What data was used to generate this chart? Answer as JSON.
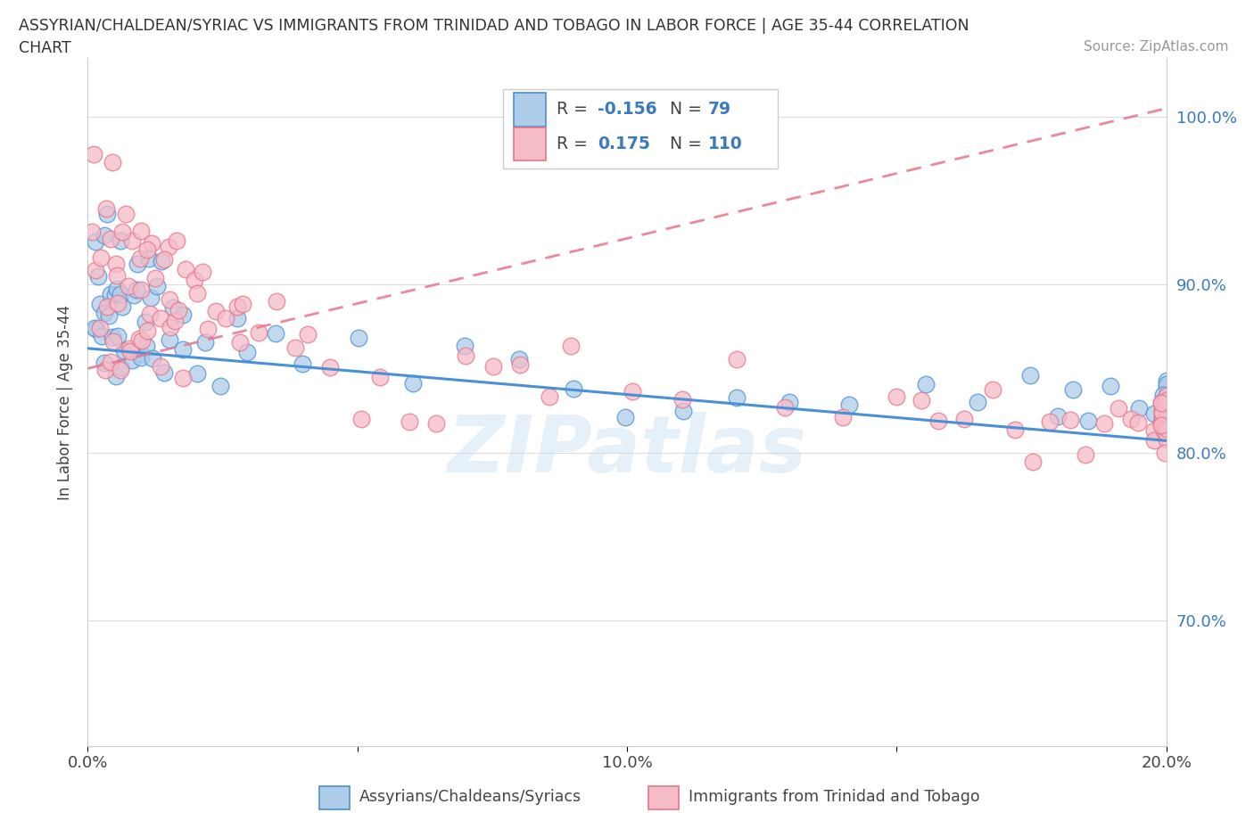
{
  "title_line1": "ASSYRIAN/CHALDEAN/SYRIAC VS IMMIGRANTS FROM TRINIDAD AND TOBAGO IN LABOR FORCE | AGE 35-44 CORRELATION",
  "title_line2": "CHART",
  "source_text": "Source: ZipAtlas.com",
  "ylabel": "In Labor Force | Age 35-44",
  "xmin": 0.0,
  "xmax": 0.2,
  "ymin": 0.625,
  "ymax": 1.035,
  "yticks": [
    0.7,
    0.8,
    0.9,
    1.0
  ],
  "ytick_labels": [
    "70.0%",
    "80.0%",
    "90.0%",
    "100.0%"
  ],
  "xticks": [
    0.0,
    0.05,
    0.1,
    0.15,
    0.2
  ],
  "xtick_labels": [
    "0.0%",
    "",
    "10.0%",
    "",
    "20.0%"
  ],
  "series1_color": "#4a90d9",
  "series1_color_fill": "#aecde8",
  "series2_color": "#e8748a",
  "series2_color_fill": "#f5bcc8",
  "series1_label": "Assyrians/Chaldeans/Syriacs",
  "series2_label": "Immigrants from Trinidad and Tobago",
  "series1_R": -0.156,
  "series1_N": 79,
  "series2_R": 0.175,
  "series2_N": 110,
  "legend_text_color": "#3a7abf",
  "label_text_color": "#444444",
  "watermark_color": "#c8dff0",
  "background_color": "#ffffff",
  "grid_color": "#dddddd",
  "series1_x": [
    0.001,
    0.001,
    0.002,
    0.002,
    0.002,
    0.003,
    0.003,
    0.003,
    0.003,
    0.004,
    0.004,
    0.004,
    0.004,
    0.005,
    0.005,
    0.005,
    0.006,
    0.006,
    0.006,
    0.007,
    0.007,
    0.007,
    0.008,
    0.008,
    0.008,
    0.009,
    0.009,
    0.01,
    0.01,
    0.011,
    0.011,
    0.012,
    0.012,
    0.013,
    0.013,
    0.014,
    0.015,
    0.016,
    0.017,
    0.018,
    0.02,
    0.022,
    0.025,
    0.028,
    0.03,
    0.035,
    0.04,
    0.05,
    0.06,
    0.07,
    0.08,
    0.09,
    0.1,
    0.11,
    0.12,
    0.13,
    0.14,
    0.155,
    0.165,
    0.175,
    0.18,
    0.183,
    0.185,
    0.19,
    0.195,
    0.198,
    0.2,
    0.2,
    0.2,
    0.2,
    0.2,
    0.2,
    0.2,
    0.2,
    0.2,
    0.2,
    0.2,
    0.2,
    0.2
  ],
  "series1_y": [
    0.88,
    0.91,
    0.86,
    0.92,
    0.89,
    0.87,
    0.9,
    0.93,
    0.85,
    0.88,
    0.91,
    0.86,
    0.94,
    0.87,
    0.9,
    0.84,
    0.89,
    0.93,
    0.86,
    0.88,
    0.91,
    0.85,
    0.87,
    0.92,
    0.89,
    0.86,
    0.9,
    0.88,
    0.85,
    0.91,
    0.87,
    0.89,
    0.86,
    0.88,
    0.92,
    0.85,
    0.87,
    0.89,
    0.86,
    0.88,
    0.86,
    0.87,
    0.85,
    0.87,
    0.84,
    0.86,
    0.85,
    0.86,
    0.84,
    0.85,
    0.85,
    0.84,
    0.83,
    0.83,
    0.83,
    0.84,
    0.83,
    0.83,
    0.83,
    0.83,
    0.81,
    0.84,
    0.83,
    0.84,
    0.83,
    0.82,
    0.83,
    0.83,
    0.83,
    0.83,
    0.83,
    0.83,
    0.83,
    0.83,
    0.83,
    0.83,
    0.83,
    0.83,
    0.83
  ],
  "series2_x": [
    0.001,
    0.001,
    0.002,
    0.002,
    0.003,
    0.003,
    0.003,
    0.004,
    0.004,
    0.004,
    0.005,
    0.005,
    0.005,
    0.006,
    0.006,
    0.006,
    0.007,
    0.007,
    0.007,
    0.008,
    0.008,
    0.008,
    0.009,
    0.009,
    0.01,
    0.01,
    0.01,
    0.011,
    0.011,
    0.012,
    0.012,
    0.013,
    0.013,
    0.014,
    0.014,
    0.015,
    0.015,
    0.016,
    0.016,
    0.017,
    0.017,
    0.018,
    0.018,
    0.019,
    0.02,
    0.021,
    0.022,
    0.023,
    0.025,
    0.027,
    0.028,
    0.03,
    0.032,
    0.035,
    0.038,
    0.04,
    0.045,
    0.05,
    0.055,
    0.06,
    0.065,
    0.07,
    0.075,
    0.08,
    0.085,
    0.09,
    0.1,
    0.11,
    0.12,
    0.13,
    0.14,
    0.15,
    0.155,
    0.158,
    0.163,
    0.168,
    0.172,
    0.175,
    0.178,
    0.182,
    0.185,
    0.188,
    0.191,
    0.193,
    0.195,
    0.197,
    0.198,
    0.199,
    0.2,
    0.2,
    0.2,
    0.2,
    0.2,
    0.2,
    0.2,
    0.2,
    0.2,
    0.2,
    0.2,
    0.2,
    0.2,
    0.2,
    0.2,
    0.2,
    0.2,
    0.2,
    0.2,
    0.2,
    0.2,
    0.2
  ],
  "series2_y": [
    0.9,
    0.97,
    0.88,
    0.92,
    0.91,
    0.86,
    0.94,
    0.88,
    0.93,
    0.85,
    0.91,
    0.87,
    0.96,
    0.89,
    0.92,
    0.85,
    0.93,
    0.87,
    0.9,
    0.91,
    0.86,
    0.94,
    0.88,
    0.92,
    0.89,
    0.93,
    0.86,
    0.91,
    0.87,
    0.92,
    0.88,
    0.9,
    0.86,
    0.93,
    0.88,
    0.91,
    0.86,
    0.9,
    0.87,
    0.92,
    0.88,
    0.91,
    0.86,
    0.9,
    0.88,
    0.91,
    0.87,
    0.89,
    0.87,
    0.88,
    0.86,
    0.89,
    0.87,
    0.88,
    0.86,
    0.87,
    0.85,
    0.84,
    0.83,
    0.82,
    0.81,
    0.87,
    0.84,
    0.85,
    0.83,
    0.86,
    0.84,
    0.82,
    0.84,
    0.83,
    0.82,
    0.83,
    0.82,
    0.83,
    0.82,
    0.83,
    0.82,
    0.8,
    0.81,
    0.82,
    0.81,
    0.82,
    0.82,
    0.82,
    0.82,
    0.82,
    0.82,
    0.82,
    0.82,
    0.82,
    0.82,
    0.82,
    0.82,
    0.82,
    0.82,
    0.82,
    0.82,
    0.82,
    0.82,
    0.82,
    0.82,
    0.82,
    0.82,
    0.82,
    0.82,
    0.82,
    0.82,
    0.82,
    0.82,
    0.82
  ],
  "series1_trend_x": [
    0.0,
    0.2
  ],
  "series1_trend_y": [
    0.862,
    0.807
  ],
  "series2_trend_x": [
    0.0,
    0.2
  ],
  "series2_trend_y": [
    0.85,
    1.005
  ]
}
